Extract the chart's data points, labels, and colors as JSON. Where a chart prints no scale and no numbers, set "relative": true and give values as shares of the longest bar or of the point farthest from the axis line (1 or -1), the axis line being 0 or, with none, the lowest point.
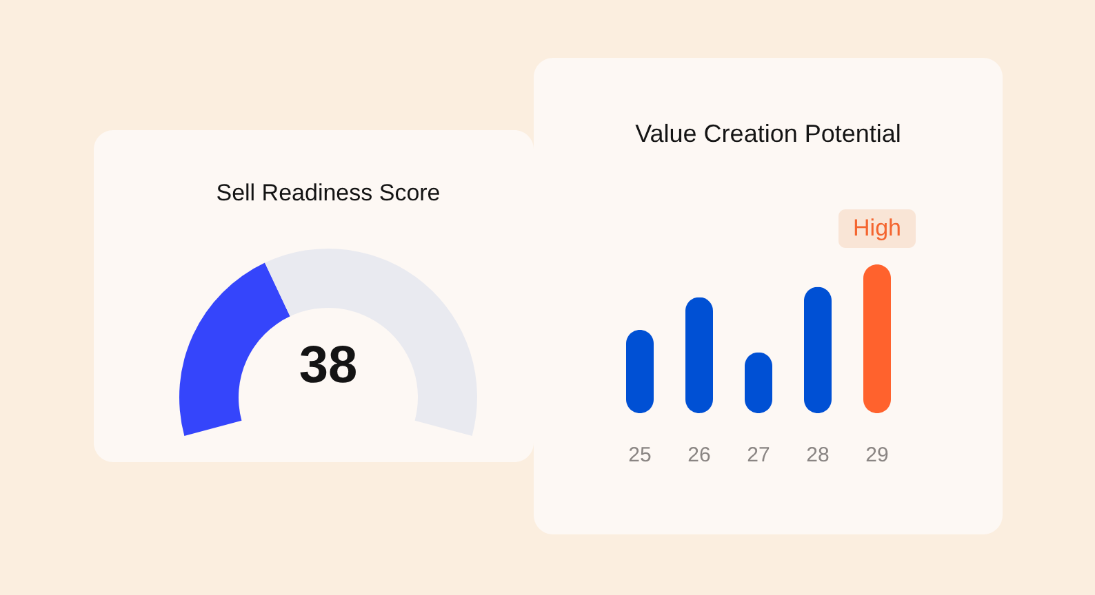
{
  "chart_data": [
    {
      "type": "donut",
      "title": "Sell Readiness Score",
      "categories": [
        null,
        null
      ],
      "values": [
        38,
        62
      ],
      "colors": [
        "#3545fb",
        "#e9eaf0"
      ],
      "annotations": [
        "38"
      ]
    },
    {
      "type": "bar",
      "title": "Value Creation Potential",
      "categories": [
        "25",
        "26",
        "27",
        "28",
        "29"
      ],
      "values": [
        0.56,
        0.78,
        0.41,
        0.85,
        1
      ],
      "colors": [
        "#0050d4",
        "#0050d4",
        "#0050d4",
        "#0050d4",
        "#ff622d"
      ],
      "relative": true,
      "annotations": [
        {
          "text": "High",
          "x": "29",
          "y": 1
        }
      ]
    }
  ]
}
